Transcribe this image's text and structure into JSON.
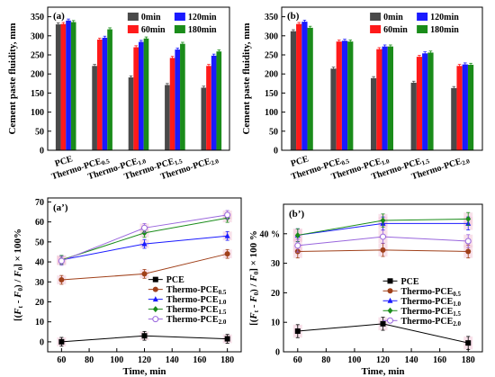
{
  "chart_data": [
    {
      "type": "bar",
      "panel": "(a)",
      "ylabel": "Cement paste fluidity,  mm",
      "ylim": [
        0,
        375
      ],
      "yticks": [
        0,
        50,
        100,
        150,
        200,
        250,
        300,
        350
      ],
      "categories": [
        {
          "main": "PCE",
          "sub": ""
        },
        {
          "main": "Thermo-PCE",
          "sub": "0.5"
        },
        {
          "main": "Thermo-PCE",
          "sub": "1.0"
        },
        {
          "main": "Thermo-PCE",
          "sub": "1.5"
        },
        {
          "main": "Thermo-PCE",
          "sub": "2.0"
        }
      ],
      "series": [
        {
          "name": "0min",
          "color": "#4a4a4a",
          "values": [
            330,
            221,
            191,
            171,
            164
          ]
        },
        {
          "name": "60min",
          "color": "#ff1a1a",
          "values": [
            331,
            290,
            270,
            242,
            221
          ]
        },
        {
          "name": "120min",
          "color": "#1a1aff",
          "values": [
            340,
            295,
            284,
            264,
            248
          ]
        },
        {
          "name": "180min",
          "color": "#1a8c1a",
          "values": [
            336,
            317,
            293,
            279,
            259
          ]
        }
      ]
    },
    {
      "type": "bar",
      "panel": "(b)",
      "ylabel": "Cement paste fluidity,  mm",
      "ylim": [
        0,
        375
      ],
      "yticks": [
        0,
        50,
        100,
        150,
        200,
        250,
        300,
        350
      ],
      "categories": [
        {
          "main": "PCE",
          "sub": ""
        },
        {
          "main": "Thermo-PCE",
          "sub": "0.5"
        },
        {
          "main": "Thermo-PCE",
          "sub": "1.0"
        },
        {
          "main": "Thermo-PCE",
          "sub": "1.5"
        },
        {
          "main": "Thermo-PCE",
          "sub": "2.0"
        }
      ],
      "series": [
        {
          "name": "0min",
          "color": "#4a4a4a",
          "values": [
            312,
            214,
            189,
            177,
            163
          ]
        },
        {
          "name": "60min",
          "color": "#ff1a1a",
          "values": [
            331,
            285,
            265,
            245,
            221
          ]
        },
        {
          "name": "120min",
          "color": "#1a1aff",
          "values": [
            337,
            287,
            272,
            254,
            225
          ]
        },
        {
          "name": "180min",
          "color": "#1a8c1a",
          "values": [
            321,
            285,
            272,
            256,
            224
          ]
        }
      ]
    },
    {
      "type": "line",
      "panel": "(a’)",
      "xlabel": "Time,  min",
      "ylabel_parts": [
        "[(",
        "F",
        "t",
        " - ",
        "F",
        "0",
        ") / ",
        "F",
        "0",
        "] × 100%"
      ],
      "xlim": [
        50,
        190
      ],
      "xticks": [
        60,
        80,
        100,
        120,
        140,
        160,
        180
      ],
      "ylim": [
        -5,
        72
      ],
      "yticks": [
        0,
        10,
        20,
        30,
        40,
        50,
        60,
        70
      ],
      "x": [
        60,
        120,
        180
      ],
      "series": [
        {
          "name": "PCE",
          "sub": "",
          "color": "#000000",
          "marker": "square",
          "values": [
            0,
            3,
            1.5
          ]
        },
        {
          "name": "Thermo-PCE",
          "sub": "0.5",
          "color": "#a0401a",
          "marker": "circle",
          "values": [
            31,
            34,
            44
          ]
        },
        {
          "name": "Thermo-PCE",
          "sub": "1.0",
          "color": "#1a1aff",
          "marker": "triangle",
          "values": [
            41,
            49,
            53
          ]
        },
        {
          "name": "Thermo-PCE",
          "sub": "1.5",
          "color": "#1a8c1a",
          "marker": "diamond",
          "values": [
            41,
            54.5,
            62
          ]
        },
        {
          "name": "Thermo-PCE",
          "sub": "2.0",
          "color": "#9966dd",
          "marker": "open-circle",
          "values": [
            40.5,
            57,
            63.5
          ]
        }
      ]
    },
    {
      "type": "line",
      "panel": "(b’)",
      "xlabel": "Time,  min",
      "ylabel_parts": [
        "[(",
        "F",
        "t",
        " - ",
        "F",
        "0",
        ") / ",
        "F",
        "0",
        "] × 100 %"
      ],
      "xlim": [
        50,
        190
      ],
      "xticks": [
        60,
        80,
        100,
        120,
        140,
        160,
        180
      ],
      "ylim": [
        0,
        50
      ],
      "yticks": [
        0,
        10,
        20,
        30,
        40
      ],
      "ytick_labels": [
        "0",
        "10",
        "20",
        "30",
        "40 %"
      ],
      "x": [
        60,
        120,
        180
      ],
      "series": [
        {
          "name": "PCE",
          "sub": "",
          "color": "#000000",
          "marker": "square",
          "values": [
            7,
            9.5,
            3
          ]
        },
        {
          "name": "Thermo-PCE",
          "sub": "0.5",
          "color": "#a0401a",
          "marker": "circle",
          "values": [
            34,
            34.5,
            34
          ]
        },
        {
          "name": "Thermo-PCE",
          "sub": "1.0",
          "color": "#1a1aff",
          "marker": "triangle",
          "values": [
            39.5,
            43.5,
            43.5
          ]
        },
        {
          "name": "Thermo-PCE",
          "sub": "1.5",
          "color": "#1a8c1a",
          "marker": "diamond",
          "values": [
            39.5,
            44.5,
            45
          ]
        },
        {
          "name": "Thermo-PCE",
          "sub": "2.0",
          "color": "#9966dd",
          "marker": "open-circle",
          "values": [
            36,
            39,
            37.5
          ]
        }
      ]
    }
  ]
}
